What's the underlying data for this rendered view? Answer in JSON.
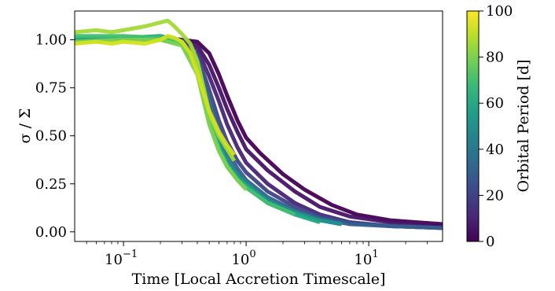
{
  "chart_data": {
    "type": "line",
    "title": "",
    "xlabel": "Time [Local Accretion Timescale]",
    "ylabel": "σ / Σ",
    "x_scale": "log",
    "xlim": [
      0.04,
      40
    ],
    "ylim": [
      -0.05,
      1.15
    ],
    "x_ticks": [
      {
        "value": 0.1,
        "base": "10",
        "exp": "−1"
      },
      {
        "value": 1,
        "base": "10",
        "exp": "0"
      },
      {
        "value": 10,
        "base": "10",
        "exp": "1"
      }
    ],
    "y_ticks": [
      {
        "value": 0.0,
        "label": "0.00"
      },
      {
        "value": 0.25,
        "label": "0.25"
      },
      {
        "value": 0.5,
        "label": "0.50"
      },
      {
        "value": 0.75,
        "label": "0.75"
      },
      {
        "value": 1.0,
        "label": "1.00"
      }
    ],
    "grid": false,
    "legend": "none",
    "colorbar": {
      "label": "Orbital Period [d]",
      "min": 0,
      "max": 100,
      "ticks": [
        {
          "value": 0,
          "label": "0"
        },
        {
          "value": 20,
          "label": "20"
        },
        {
          "value": 40,
          "label": "40"
        },
        {
          "value": 60,
          "label": "60"
        },
        {
          "value": 80,
          "label": "80"
        },
        {
          "value": 100,
          "label": "100"
        }
      ],
      "colormap": [
        "#440154",
        "#482878",
        "#3e4989",
        "#31688e",
        "#26828e",
        "#1f9e89",
        "#35b779",
        "#6ece58",
        "#b5de2b",
        "#fde725"
      ]
    },
    "series": [
      {
        "color": "#440154",
        "points": [
          [
            0.04,
            1.0
          ],
          [
            0.1,
            1.01
          ],
          [
            0.2,
            1.01
          ],
          [
            0.3,
            1.0
          ],
          [
            0.4,
            0.99
          ],
          [
            0.5,
            0.93
          ],
          [
            0.6,
            0.82
          ],
          [
            0.7,
            0.71
          ],
          [
            0.85,
            0.58
          ],
          [
            1.0,
            0.49
          ],
          [
            1.3,
            0.41
          ],
          [
            2.0,
            0.3
          ],
          [
            3.0,
            0.22
          ],
          [
            5.0,
            0.14
          ],
          [
            8.0,
            0.09
          ],
          [
            15.0,
            0.06
          ],
          [
            40.0,
            0.04
          ]
        ]
      },
      {
        "color": "#471365",
        "points": [
          [
            0.04,
            1.0
          ],
          [
            0.1,
            1.01
          ],
          [
            0.2,
            1.01
          ],
          [
            0.3,
            1.0
          ],
          [
            0.4,
            0.97
          ],
          [
            0.5,
            0.87
          ],
          [
            0.6,
            0.75
          ],
          [
            0.7,
            0.64
          ],
          [
            0.85,
            0.52
          ],
          [
            1.0,
            0.43
          ],
          [
            1.5,
            0.32
          ],
          [
            2.5,
            0.21
          ],
          [
            4.0,
            0.13
          ],
          [
            7.0,
            0.08
          ],
          [
            15.0,
            0.05
          ],
          [
            40.0,
            0.03
          ]
        ]
      },
      {
        "color": "#482475",
        "points": [
          [
            0.04,
            1.0
          ],
          [
            0.1,
            1.01
          ],
          [
            0.2,
            1.01
          ],
          [
            0.3,
            1.0
          ],
          [
            0.4,
            0.95
          ],
          [
            0.5,
            0.81
          ],
          [
            0.6,
            0.68
          ],
          [
            0.7,
            0.56
          ],
          [
            0.85,
            0.44
          ],
          [
            1.0,
            0.36
          ],
          [
            1.5,
            0.25
          ],
          [
            2.5,
            0.15
          ],
          [
            4.0,
            0.09
          ],
          [
            7.0,
            0.05
          ],
          [
            15.0,
            0.03
          ],
          [
            40.0,
            0.02
          ]
        ]
      },
      {
        "color": "#414487",
        "points": [
          [
            0.04,
            1.0
          ],
          [
            0.1,
            1.01
          ],
          [
            0.2,
            1.01
          ],
          [
            0.3,
            0.99
          ],
          [
            0.4,
            0.92
          ],
          [
            0.5,
            0.74
          ],
          [
            0.6,
            0.58
          ],
          [
            0.7,
            0.47
          ],
          [
            0.85,
            0.37
          ],
          [
            1.0,
            0.31
          ],
          [
            1.5,
            0.21
          ],
          [
            2.5,
            0.13
          ],
          [
            4.0,
            0.08
          ],
          [
            7.0,
            0.05
          ],
          [
            15.0,
            0.03
          ],
          [
            40.0,
            0.02
          ]
        ]
      },
      {
        "color": "#355f8d",
        "points": [
          [
            0.04,
            1.0
          ],
          [
            0.1,
            1.01
          ],
          [
            0.2,
            1.01
          ],
          [
            0.3,
            0.99
          ],
          [
            0.4,
            0.9
          ],
          [
            0.5,
            0.69
          ],
          [
            0.6,
            0.53
          ],
          [
            0.7,
            0.42
          ],
          [
            0.85,
            0.33
          ],
          [
            1.0,
            0.27
          ],
          [
            1.5,
            0.18
          ],
          [
            2.5,
            0.11
          ],
          [
            4.0,
            0.07
          ],
          [
            7.0,
            0.04
          ],
          [
            15.0,
            0.03
          ],
          [
            40.0,
            0.02
          ]
        ]
      },
      {
        "color": "#2a788e",
        "points": [
          [
            0.04,
            1.01
          ],
          [
            0.1,
            1.01
          ],
          [
            0.2,
            1.01
          ],
          [
            0.3,
            0.99
          ],
          [
            0.4,
            0.88
          ],
          [
            0.5,
            0.65
          ],
          [
            0.6,
            0.49
          ],
          [
            0.7,
            0.39
          ],
          [
            0.85,
            0.3
          ],
          [
            1.0,
            0.26
          ],
          [
            1.5,
            0.17
          ],
          [
            2.5,
            0.1
          ],
          [
            4.0,
            0.06
          ],
          [
            6.0,
            0.04
          ]
        ]
      },
      {
        "color": "#21918c",
        "points": [
          [
            0.04,
            1.0
          ],
          [
            0.1,
            1.0
          ],
          [
            0.2,
            1.0
          ],
          [
            0.3,
            0.98
          ],
          [
            0.4,
            0.86
          ],
          [
            0.5,
            0.62
          ],
          [
            0.6,
            0.46
          ],
          [
            0.7,
            0.36
          ],
          [
            0.85,
            0.29
          ],
          [
            1.0,
            0.25
          ],
          [
            1.5,
            0.16
          ],
          [
            2.5,
            0.1
          ],
          [
            4.0,
            0.06
          ],
          [
            6.0,
            0.04
          ]
        ]
      },
      {
        "color": "#22a884",
        "points": [
          [
            0.04,
            1.01
          ],
          [
            0.1,
            1.01
          ],
          [
            0.2,
            1.02
          ],
          [
            0.3,
            0.99
          ],
          [
            0.4,
            0.85
          ],
          [
            0.5,
            0.6
          ],
          [
            0.6,
            0.44
          ],
          [
            0.7,
            0.35
          ],
          [
            0.85,
            0.28
          ],
          [
            1.0,
            0.24
          ],
          [
            1.5,
            0.15
          ],
          [
            2.5,
            0.09
          ],
          [
            4.0,
            0.05
          ]
        ]
      },
      {
        "color": "#44bf70",
        "points": [
          [
            0.04,
            1.02
          ],
          [
            0.1,
            1.02
          ],
          [
            0.2,
            1.01
          ],
          [
            0.3,
            0.98
          ],
          [
            0.4,
            0.84
          ],
          [
            0.5,
            0.58
          ],
          [
            0.6,
            0.43
          ],
          [
            0.7,
            0.34
          ],
          [
            0.85,
            0.27
          ],
          [
            1.0,
            0.23
          ],
          [
            1.5,
            0.15
          ],
          [
            2.5,
            0.09
          ]
        ]
      },
      {
        "color": "#7ad151",
        "points": [
          [
            0.04,
            0.99
          ],
          [
            0.1,
            1.0
          ],
          [
            0.2,
            1.0
          ],
          [
            0.3,
            0.97
          ],
          [
            0.4,
            0.82
          ],
          [
            0.5,
            0.56
          ],
          [
            0.6,
            0.42
          ],
          [
            0.7,
            0.34
          ],
          [
            0.85,
            0.27
          ],
          [
            1.0,
            0.22
          ]
        ]
      },
      {
        "color": "#a2da37",
        "points": [
          [
            0.04,
            1.04
          ],
          [
            0.06,
            1.05
          ],
          [
            0.08,
            1.04
          ],
          [
            0.1,
            1.05
          ],
          [
            0.15,
            1.07
          ],
          [
            0.2,
            1.09
          ],
          [
            0.23,
            1.1
          ],
          [
            0.26,
            1.07
          ],
          [
            0.3,
            1.03
          ],
          [
            0.35,
            0.98
          ],
          [
            0.4,
            0.89
          ],
          [
            0.45,
            0.75
          ],
          [
            0.5,
            0.62
          ],
          [
            0.6,
            0.5
          ],
          [
            0.7,
            0.43
          ],
          [
            0.8,
            0.37
          ]
        ]
      },
      {
        "color": "#d2e21b",
        "points": [
          [
            0.04,
            0.98
          ],
          [
            0.06,
            0.99
          ],
          [
            0.08,
            0.98
          ],
          [
            0.1,
            0.99
          ],
          [
            0.15,
            0.98
          ],
          [
            0.2,
            1.0
          ],
          [
            0.23,
            1.02
          ],
          [
            0.26,
            1.01
          ],
          [
            0.3,
            0.99
          ],
          [
            0.35,
            0.93
          ],
          [
            0.4,
            0.83
          ],
          [
            0.45,
            0.72
          ],
          [
            0.5,
            0.63
          ],
          [
            0.6,
            0.52
          ],
          [
            0.7,
            0.45
          ],
          [
            0.8,
            0.4
          ]
        ]
      }
    ]
  }
}
